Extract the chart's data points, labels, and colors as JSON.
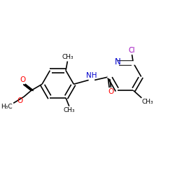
{
  "bg_color": "#ffffff",
  "bond_color": "#000000",
  "nitrogen_color": "#0000cc",
  "oxygen_color": "#ff0000",
  "chlorine_color": "#9900bb",
  "lw": 1.2,
  "fs": 7.0,
  "xlim": [
    0,
    10
  ],
  "ylim": [
    0,
    10
  ]
}
